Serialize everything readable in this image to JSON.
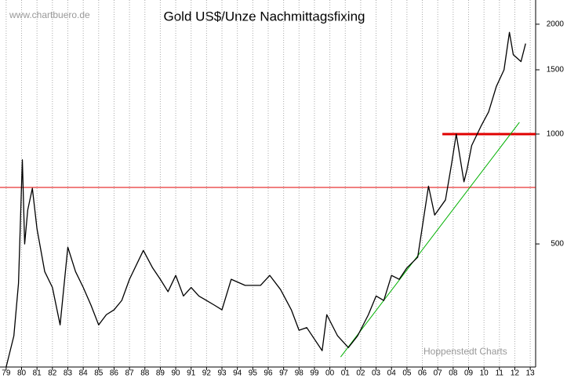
{
  "chart_data": {
    "type": "line",
    "title": "Gold US$/Unze Nachmittagsfixing",
    "annotations": [
      "www.chartbuero.de",
      "Hoppenstedt Charts"
    ],
    "log_y": true,
    "grid": "x",
    "xlim": [
      1978.6,
      2013.35
    ],
    "ylim": [
      230,
      2330
    ],
    "yticks": [
      500,
      1000,
      1500,
      2000
    ],
    "xticks": [
      {
        "value": 1979,
        "label": "79"
      },
      {
        "value": 1980,
        "label": "80"
      },
      {
        "value": 1981,
        "label": "81"
      },
      {
        "value": 1982,
        "label": "82"
      },
      {
        "value": 1983,
        "label": "83"
      },
      {
        "value": 1984,
        "label": "84"
      },
      {
        "value": 1985,
        "label": "85"
      },
      {
        "value": 1986,
        "label": "86"
      },
      {
        "value": 1987,
        "label": "87"
      },
      {
        "value": 1988,
        "label": "88"
      },
      {
        "value": 1989,
        "label": "89"
      },
      {
        "value": 1990,
        "label": "90"
      },
      {
        "value": 1991,
        "label": "91"
      },
      {
        "value": 1992,
        "label": "92"
      },
      {
        "value": 1993,
        "label": "93"
      },
      {
        "value": 1994,
        "label": "94"
      },
      {
        "value": 1995,
        "label": "95"
      },
      {
        "value": 1996,
        "label": "96"
      },
      {
        "value": 1997,
        "label": "97"
      },
      {
        "value": 1998,
        "label": "98"
      },
      {
        "value": 1999,
        "label": "99"
      },
      {
        "value": 2000,
        "label": "00"
      },
      {
        "value": 2001,
        "label": "01"
      },
      {
        "value": 2002,
        "label": "02"
      },
      {
        "value": 2003,
        "label": "03"
      },
      {
        "value": 2004,
        "label": "04"
      },
      {
        "value": 2005,
        "label": "05"
      },
      {
        "value": 2006,
        "label": "06"
      },
      {
        "value": 2007,
        "label": "07"
      },
      {
        "value": 2008,
        "label": "08"
      },
      {
        "value": 2009,
        "label": "09"
      },
      {
        "value": 2010,
        "label": "10"
      },
      {
        "value": 2011,
        "label": "11"
      },
      {
        "value": 2012,
        "label": "12"
      },
      {
        "value": 2013,
        "label": "13"
      }
    ],
    "x": [
      1979.0,
      1979.5,
      1979.8,
      1980.05,
      1980.2,
      1980.4,
      1980.7,
      1981.0,
      1981.5,
      1982.0,
      1982.5,
      1983.0,
      1983.5,
      1984.0,
      1984.5,
      1985.0,
      1985.5,
      1986.0,
      1986.5,
      1987.0,
      1987.9,
      1988.5,
      1989.0,
      1989.5,
      1990.0,
      1990.5,
      1991.0,
      1991.5,
      1992.0,
      1992.5,
      1993.0,
      1993.6,
      1994.5,
      1995.5,
      1996.1,
      1996.8,
      1997.5,
      1998.0,
      1998.5,
      1999.5,
      1999.8,
      2000.5,
      2001.2,
      2001.8,
      2002.5,
      2003.0,
      2003.5,
      2004.0,
      2004.5,
      2005.0,
      2005.7,
      2006.4,
      2006.8,
      2007.5,
      2007.9,
      2008.2,
      2008.7,
      2008.9,
      2009.2,
      2009.8,
      2010.3,
      2010.8,
      2011.3,
      2011.65,
      2011.9,
      2012.4,
      2012.7
    ],
    "series": [
      {
        "color": "#000000",
        "values": [
          230,
          280,
          390,
          850,
          500,
          620,
          710,
          550,
          420,
          380,
          300,
          490,
          420,
          380,
          340,
          300,
          320,
          330,
          350,
          400,
          480,
          430,
          400,
          370,
          410,
          360,
          380,
          360,
          350,
          340,
          330,
          400,
          385,
          385,
          410,
          375,
          330,
          290,
          295,
          255,
          320,
          280,
          260,
          280,
          320,
          360,
          350,
          410,
          400,
          430,
          460,
          720,
          600,
          660,
          830,
          1000,
          740,
          800,
          930,
          1050,
          1150,
          1350,
          1500,
          1900,
          1650,
          1580,
          1770
        ]
      }
    ],
    "hlines": [
      {
        "value": 714,
        "color": "#e00000",
        "width": 1,
        "xlim": [
          1978.6,
          2013.35
        ]
      },
      {
        "value": 1000,
        "color": "#e00000",
        "width": 3,
        "xlim": [
          2007.3,
          2013.35
        ]
      }
    ],
    "trendline": {
      "color": "#00b000",
      "x": [
        2000.7,
        2012.3
      ],
      "values": [
        245,
        1077
      ]
    }
  }
}
